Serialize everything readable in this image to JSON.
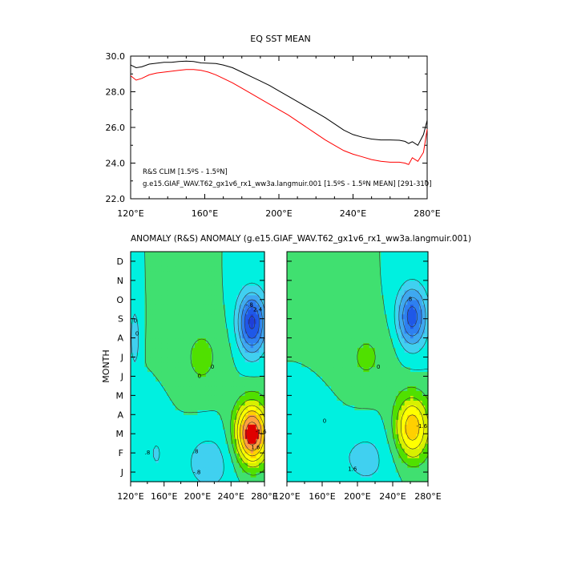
{
  "chart_data": [
    {
      "type": "line",
      "title": "EQ SST MEAN",
      "xlabel": "",
      "ylabel": "",
      "xlim": [
        120,
        280
      ],
      "ylim": [
        22,
        30
      ],
      "x_ticks": [
        120,
        160,
        200,
        240,
        280
      ],
      "x_tick_labels": [
        "120°E",
        "160°E",
        "200°E",
        "240°E",
        "280°E"
      ],
      "y_ticks": [
        22,
        24,
        26,
        28,
        30
      ],
      "y_tick_labels": [
        "22.0",
        "24.0",
        "26.0",
        "28.0",
        "30.0"
      ],
      "series": [
        {
          "name": "g.e15.GIAF_WAV.T62_gx1v6_rx1_ww3a.langmuir.001 [1.5ºS - 1.5ºN MEAN] [291-310]",
          "color": "#000000",
          "x": [
            120,
            123,
            126,
            130,
            134,
            138,
            142,
            146,
            150,
            154,
            158,
            162,
            166,
            170,
            175,
            180,
            185,
            190,
            195,
            200,
            205,
            210,
            215,
            220,
            225,
            230,
            235,
            240,
            245,
            250,
            255,
            260,
            265,
            268,
            270,
            272,
            275,
            278,
            280
          ],
          "values": [
            29.5,
            29.35,
            29.4,
            29.55,
            29.6,
            29.65,
            29.65,
            29.7,
            29.72,
            29.7,
            29.62,
            29.6,
            29.58,
            29.5,
            29.35,
            29.1,
            28.85,
            28.6,
            28.35,
            28.05,
            27.75,
            27.45,
            27.15,
            26.85,
            26.55,
            26.2,
            25.85,
            25.6,
            25.45,
            25.35,
            25.3,
            25.3,
            25.28,
            25.22,
            25.1,
            25.2,
            25.0,
            25.6,
            26.4
          ]
        },
        {
          "name": "R&S CLIM [1.5ºS - 1.5ºN]",
          "color": "#ff0000",
          "x": [
            120,
            123,
            126,
            130,
            134,
            138,
            142,
            146,
            150,
            154,
            158,
            162,
            166,
            170,
            175,
            180,
            185,
            190,
            195,
            200,
            205,
            210,
            215,
            220,
            225,
            230,
            235,
            240,
            245,
            250,
            255,
            260,
            265,
            268,
            270,
            272,
            275,
            278,
            280
          ],
          "values": [
            28.9,
            28.65,
            28.75,
            28.95,
            29.05,
            29.1,
            29.15,
            29.2,
            29.25,
            29.25,
            29.2,
            29.1,
            28.95,
            28.75,
            28.5,
            28.2,
            27.9,
            27.6,
            27.3,
            27.0,
            26.7,
            26.35,
            26.0,
            25.65,
            25.3,
            25.0,
            24.7,
            24.5,
            24.35,
            24.2,
            24.1,
            24.05,
            24.05,
            24.0,
            23.92,
            24.3,
            24.1,
            24.6,
            25.9
          ]
        }
      ],
      "legend_entries": [
        {
          "text": "R&S CLIM [1.5ºS - 1.5ºN]",
          "color": "#ff0000"
        },
        {
          "text": "g.e15.GIAF_WAV.T62_gx1v6_rx1_ww3a.langmuir.001 [1.5ºS - 1.5ºN MEAN] [291-310]",
          "color": "#000000"
        }
      ],
      "legend_placement": "bottom-left",
      "grid": false
    },
    {
      "type": "heatmap",
      "title": "ANOMALY (R&S)",
      "ylabel": "MONTH",
      "xlim": [
        120,
        280
      ],
      "x_ticks": [
        120,
        160,
        200,
        240,
        280
      ],
      "x_tick_labels": [
        "120°E",
        "160°E",
        "200°E",
        "240°E",
        "280°E"
      ],
      "y_tick_labels": [
        "J",
        "F",
        "M",
        "A",
        "M",
        "J",
        "J",
        "A",
        "S",
        "O",
        "N",
        "D"
      ],
      "contour_levels": [
        -2.0,
        -1.6,
        -1.2,
        -0.8,
        -0.4,
        0,
        0.4,
        0.8,
        1.2,
        1.6,
        2.0,
        2.4
      ],
      "contour_labels": [
        "-1.6",
        "-.8",
        "-.8",
        "0",
        "0",
        ".8",
        "1.6",
        "2.4",
        ".8",
        "0",
        "0"
      ],
      "anomaly_sources": [
        {
          "lon": 265,
          "month": 2.5,
          "amp": 2.8,
          "slon": 20,
          "smon": 1.6
        },
        {
          "lon": 265,
          "month": 8.3,
          "amp": -2.1,
          "slon": 17,
          "smon": 1.6
        },
        {
          "lon": 214,
          "month": 1.0,
          "amp": -0.6,
          "slon": 34,
          "smon": 1.8
        },
        {
          "lon": 205,
          "month": 6.5,
          "amp": 0.5,
          "slon": 28,
          "smon": 2.0
        },
        {
          "lon": 125,
          "month": 7.5,
          "amp": -0.8,
          "slon": 5,
          "smon": 1.5
        },
        {
          "lon": 150,
          "month": 1.5,
          "amp": -0.4,
          "slon": 18,
          "smon": 2.0
        }
      ]
    },
    {
      "type": "heatmap",
      "title": "ANOMALY (g.e15.GIAF_WAV.T62_gx1v6_rx1_ww3a.langmuir.001)",
      "ylabel": "",
      "xlim": [
        120,
        280
      ],
      "x_ticks": [
        120,
        160,
        200,
        240,
        280
      ],
      "x_tick_labels": [
        "120°E",
        "160°E",
        "200°E",
        "240°E",
        "280°E"
      ],
      "y_tick_labels": [
        "J",
        "F",
        "M",
        "A",
        "M",
        "J",
        "J",
        "A",
        "S",
        "O",
        "N",
        "D"
      ],
      "contour_levels": [
        -2.0,
        -1.6,
        -1.2,
        -0.8,
        -0.4,
        0,
        0.4,
        0.8,
        1.2,
        1.6,
        2.0,
        2.4
      ],
      "contour_labels": [
        "-1.6",
        ".8",
        "1.6",
        "0",
        "0"
      ],
      "anomaly_sources": [
        {
          "lon": 262,
          "month": 2.8,
          "amp": 1.9,
          "slon": 20,
          "smon": 1.7
        },
        {
          "lon": 262,
          "month": 8.6,
          "amp": -1.8,
          "slon": 17,
          "smon": 1.6
        },
        {
          "lon": 210,
          "month": 1.2,
          "amp": -0.5,
          "slon": 36,
          "smon": 1.9
        },
        {
          "lon": 210,
          "month": 6.5,
          "amp": 0.45,
          "slon": 30,
          "smon": 2.0
        },
        {
          "lon": 160,
          "month": 2.0,
          "amp": -0.3,
          "slon": 20,
          "smon": 2.0
        }
      ]
    }
  ],
  "palette": {
    "levels": [
      -2.0,
      -1.6,
      -1.2,
      -0.8,
      -0.4,
      0,
      0.4,
      0.8,
      1.2,
      1.6,
      2.0,
      2.4
    ],
    "colors": [
      "#1f3fd8",
      "#1f58e8",
      "#2e80f0",
      "#3fa8f0",
      "#40d0f0",
      "#00f0e0",
      "#40e070",
      "#50e000",
      "#d8f000",
      "#ffff00",
      "#ffd000",
      "#ffa040",
      "#e00000"
    ]
  }
}
